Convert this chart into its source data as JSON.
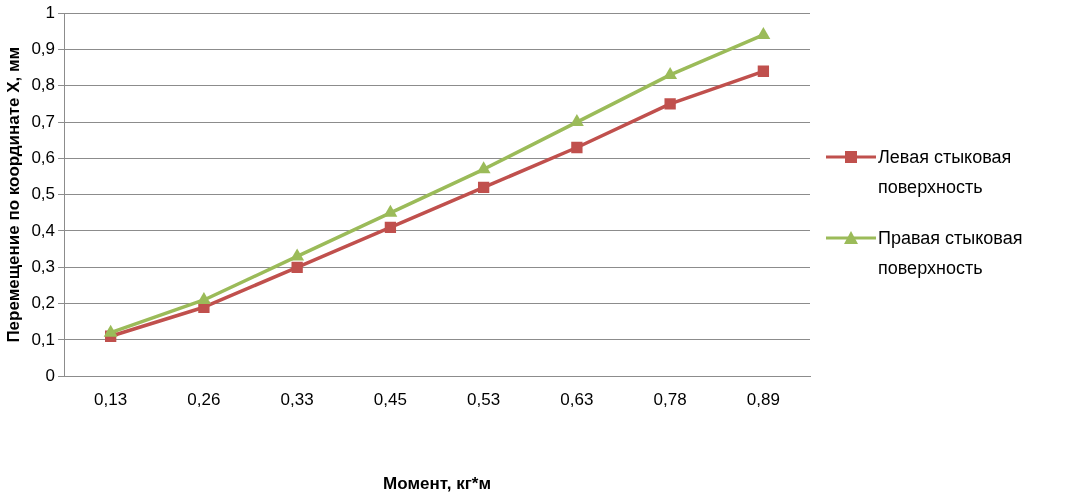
{
  "chart_data": {
    "type": "line",
    "xlabel": "Момент, кг*м",
    "ylabel": "Перемещение по координате Х, мм",
    "categories": [
      "0,13",
      "0,26",
      "0,33",
      "0,45",
      "0,53",
      "0,63",
      "0,78",
      "0,89"
    ],
    "series": [
      {
        "name": "Левая стыковая поверхность",
        "color": "#c0504d",
        "marker": "square",
        "values": [
          0.11,
          0.19,
          0.3,
          0.41,
          0.52,
          0.63,
          0.75,
          0.84
        ]
      },
      {
        "name": "Правая стыковая поверхность",
        "color": "#9bbb59",
        "marker": "triangle",
        "values": [
          0.12,
          0.21,
          0.33,
          0.45,
          0.57,
          0.7,
          0.83,
          0.94
        ]
      }
    ],
    "ylim": [
      0,
      1
    ],
    "yticks": [
      {
        "value": 0,
        "label": "0"
      },
      {
        "value": 0.1,
        "label": "0,1"
      },
      {
        "value": 0.2,
        "label": "0,2"
      },
      {
        "value": 0.3,
        "label": "0,3"
      },
      {
        "value": 0.4,
        "label": "0,4"
      },
      {
        "value": 0.5,
        "label": "0,5"
      },
      {
        "value": 0.6,
        "label": "0,6"
      },
      {
        "value": 0.7,
        "label": "0,7"
      },
      {
        "value": 0.8,
        "label": "0,8"
      },
      {
        "value": 0.9,
        "label": "0,9"
      },
      {
        "value": 1,
        "label": "1"
      }
    ],
    "grid": "y",
    "legend": "right",
    "line_style": "solid"
  }
}
